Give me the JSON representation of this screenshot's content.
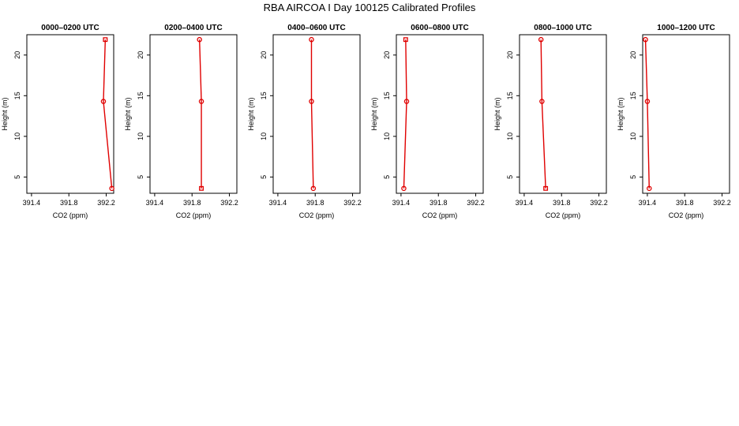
{
  "title": "RBA AIRCOA I  Day 100125  Calibrated Profiles",
  "colors": {
    "series": "#e00000",
    "axis": "#000000",
    "background": "#ffffff"
  },
  "chart_data": [
    {
      "type": "line",
      "title": "0000–0200 UTC",
      "xlabel": "CO2 (ppm)",
      "ylabel": "Height (m)",
      "xlim": [
        391.35,
        392.28
      ],
      "ylim": [
        3,
        22.5
      ],
      "xticks": [
        391.4,
        391.8,
        392.2
      ],
      "xtick_labels": [
        "391.4",
        "391.8",
        "392.2"
      ],
      "yticks": [
        5,
        10,
        15,
        20
      ],
      "ytick_labels": [
        "5",
        "10",
        "15",
        "20"
      ],
      "x": [
        392.19,
        392.17,
        392.26
      ],
      "y": [
        21.9,
        14.3,
        3.6
      ],
      "markers": [
        "square",
        "circle",
        "circle"
      ],
      "grid": false
    },
    {
      "type": "line",
      "title": "0200–0400 UTC",
      "xlabel": "CO2 (ppm)",
      "ylabel": "Height (m)",
      "xlim": [
        391.35,
        392.28
      ],
      "ylim": [
        3,
        22.5
      ],
      "xticks": [
        391.4,
        391.8,
        392.2
      ],
      "xtick_labels": [
        "391.4",
        "391.8",
        "392.2"
      ],
      "yticks": [
        5,
        10,
        15,
        20
      ],
      "ytick_labels": [
        "5",
        "10",
        "15",
        "20"
      ],
      "x": [
        391.88,
        391.9,
        391.9
      ],
      "y": [
        21.9,
        14.3,
        3.6
      ],
      "markers": [
        "circle",
        "circle",
        "square"
      ],
      "grid": false
    },
    {
      "type": "line",
      "title": "0400–0600 UTC",
      "xlabel": "CO2 (ppm)",
      "ylabel": "Height (m)",
      "xlim": [
        391.35,
        392.28
      ],
      "ylim": [
        3,
        22.5
      ],
      "xticks": [
        391.4,
        391.8,
        392.2
      ],
      "xtick_labels": [
        "391.4",
        "391.8",
        "392.2"
      ],
      "yticks": [
        5,
        10,
        15,
        20
      ],
      "ytick_labels": [
        "5",
        "10",
        "15",
        "20"
      ],
      "x": [
        391.76,
        391.76,
        391.78
      ],
      "y": [
        21.9,
        14.3,
        3.6
      ],
      "markers": [
        "circle",
        "circle",
        "circle"
      ],
      "grid": false
    },
    {
      "type": "line",
      "title": "0600–0800 UTC",
      "xlabel": "CO2 (ppm)",
      "ylabel": "Height (m)",
      "xlim": [
        391.35,
        392.28
      ],
      "ylim": [
        3,
        22.5
      ],
      "xticks": [
        391.4,
        391.8,
        392.2
      ],
      "xtick_labels": [
        "391.4",
        "391.8",
        "392.2"
      ],
      "yticks": [
        5,
        10,
        15,
        20
      ],
      "ytick_labels": [
        "5",
        "10",
        "15",
        "20"
      ],
      "x": [
        391.45,
        391.46,
        391.43
      ],
      "y": [
        21.9,
        14.3,
        3.6
      ],
      "markers": [
        "square",
        "circle",
        "circle"
      ],
      "grid": false
    },
    {
      "type": "line",
      "title": "0800–1000 UTC",
      "xlabel": "CO2 (ppm)",
      "ylabel": "Height (m)",
      "xlim": [
        391.35,
        392.28
      ],
      "ylim": [
        3,
        22.5
      ],
      "xticks": [
        391.4,
        391.8,
        392.2
      ],
      "xtick_labels": [
        "391.4",
        "391.8",
        "392.2"
      ],
      "yticks": [
        5,
        10,
        15,
        20
      ],
      "ytick_labels": [
        "5",
        "10",
        "15",
        "20"
      ],
      "x": [
        391.58,
        391.59,
        391.63
      ],
      "y": [
        21.9,
        14.3,
        3.6
      ],
      "markers": [
        "circle",
        "circle",
        "square"
      ],
      "grid": false
    },
    {
      "type": "line",
      "title": "1000–1200 UTC",
      "xlabel": "CO2 (ppm)",
      "ylabel": "Height (m)",
      "xlim": [
        391.35,
        392.28
      ],
      "ylim": [
        3,
        22.5
      ],
      "xticks": [
        391.4,
        391.8,
        392.2
      ],
      "xtick_labels": [
        "391.4",
        "391.8",
        "392.2"
      ],
      "yticks": [
        5,
        10,
        15,
        20
      ],
      "ytick_labels": [
        "5",
        "10",
        "15",
        "20"
      ],
      "x": [
        391.38,
        391.4,
        391.42
      ],
      "y": [
        21.9,
        14.3,
        3.6
      ],
      "markers": [
        "circle",
        "circle",
        "circle"
      ],
      "grid": false
    }
  ]
}
